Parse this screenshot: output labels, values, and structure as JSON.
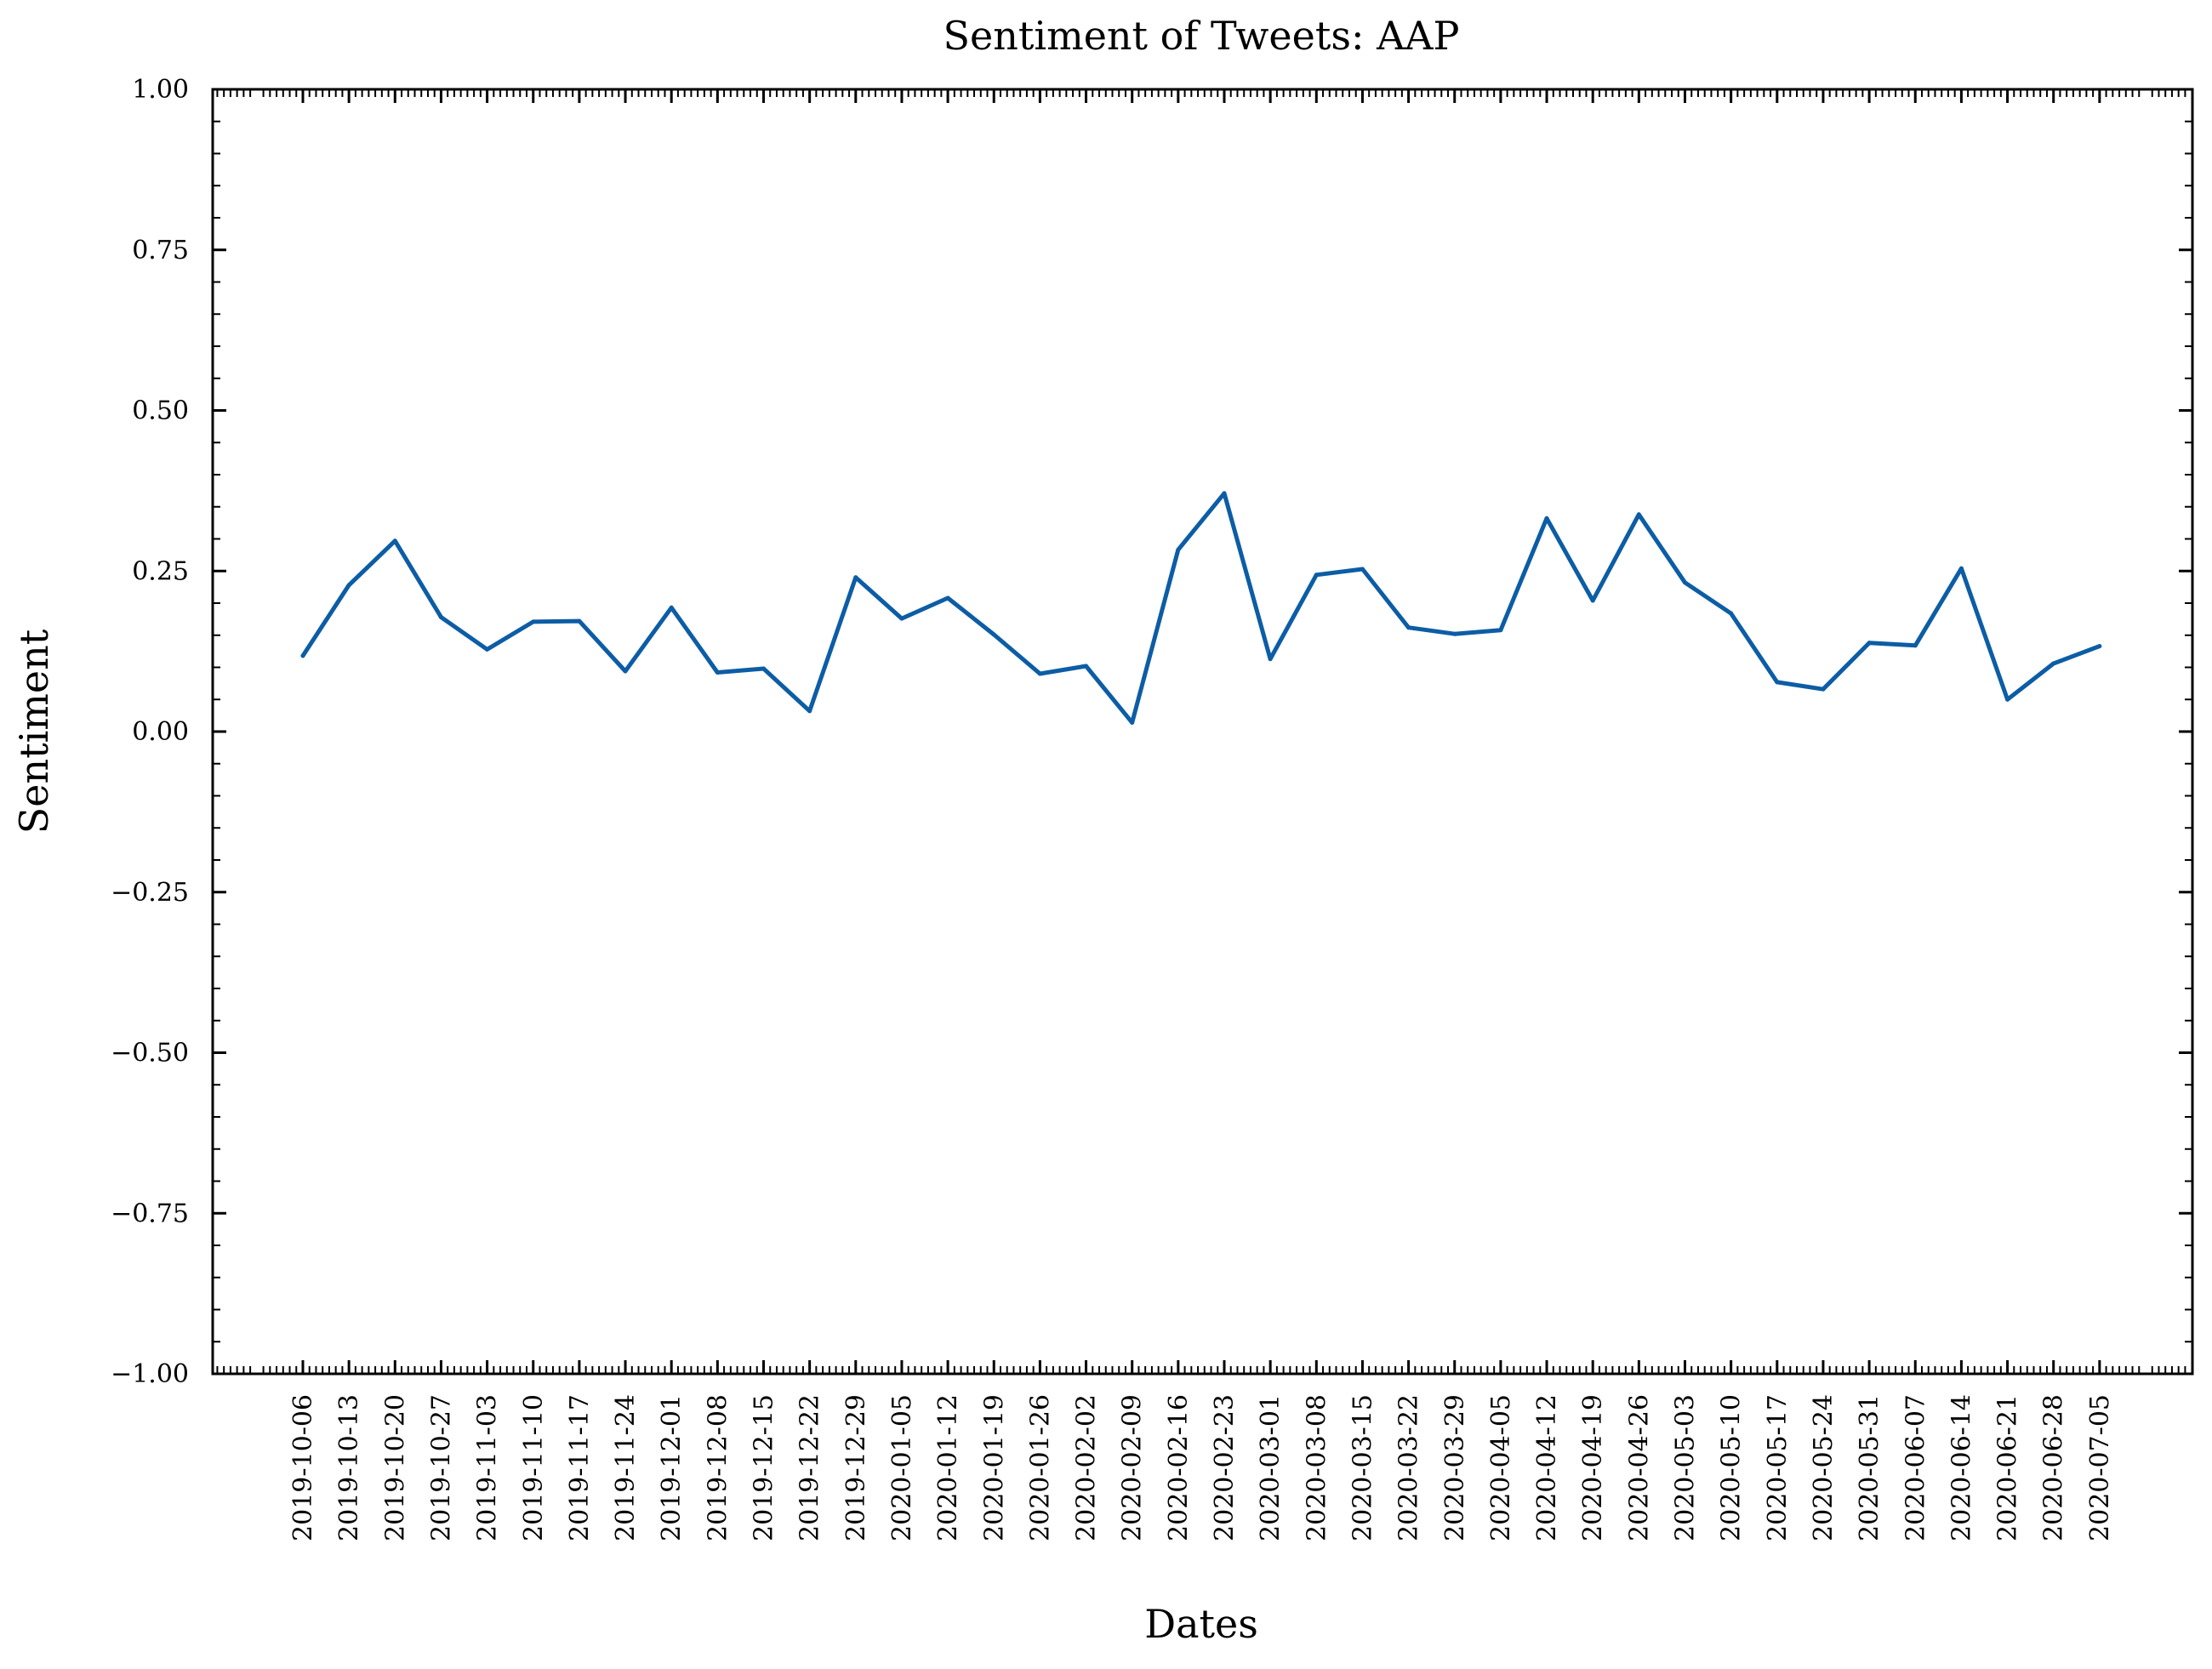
{
  "colors": {
    "background": "#ffffff",
    "axes": "#000000",
    "series_line": "#0c5da5"
  },
  "chart_data": {
    "type": "line",
    "title": "Sentiment of Tweets: AAP",
    "xlabel": "Dates",
    "ylabel": "Sentiment",
    "ylim": [
      -1.0,
      1.0
    ],
    "yticks": [
      -1.0,
      -0.75,
      -0.5,
      -0.25,
      0.0,
      0.25,
      0.5,
      0.75,
      1.0
    ],
    "ytick_labels": [
      "−1.00",
      "−0.75",
      "−0.50",
      "−0.25",
      "0.00",
      "0.25",
      "0.50",
      "0.75",
      "1.00"
    ],
    "grid": false,
    "legend": "none",
    "x": [
      "2019-10-06",
      "2019-10-13",
      "2019-10-20",
      "2019-10-27",
      "2019-11-03",
      "2019-11-10",
      "2019-11-17",
      "2019-11-24",
      "2019-12-01",
      "2019-12-08",
      "2019-12-15",
      "2019-12-22",
      "2019-12-29",
      "2020-01-05",
      "2020-01-12",
      "2020-01-19",
      "2020-01-26",
      "2020-02-02",
      "2020-02-09",
      "2020-02-16",
      "2020-02-23",
      "2020-03-01",
      "2020-03-08",
      "2020-03-15",
      "2020-03-22",
      "2020-03-29",
      "2020-04-05",
      "2020-04-12",
      "2020-04-19",
      "2020-04-26",
      "2020-05-03",
      "2020-05-10",
      "2020-05-17",
      "2020-05-24",
      "2020-05-31",
      "2020-06-07",
      "2020-06-14",
      "2020-06-21",
      "2020-06-28",
      "2020-07-05"
    ],
    "series": [
      {
        "values": [
          0.118,
          0.228,
          0.297,
          0.178,
          0.128,
          0.171,
          0.172,
          0.094,
          0.193,
          0.092,
          0.098,
          0.032,
          0.24,
          0.176,
          0.208,
          0.151,
          0.09,
          0.102,
          0.014,
          0.283,
          0.371,
          0.113,
          0.244,
          0.253,
          0.162,
          0.152,
          0.158,
          0.332,
          0.204,
          0.338,
          0.232,
          0.184,
          0.077,
          0.066,
          0.138,
          0.134,
          0.254,
          0.05,
          0.106,
          0.133
        ]
      }
    ]
  }
}
